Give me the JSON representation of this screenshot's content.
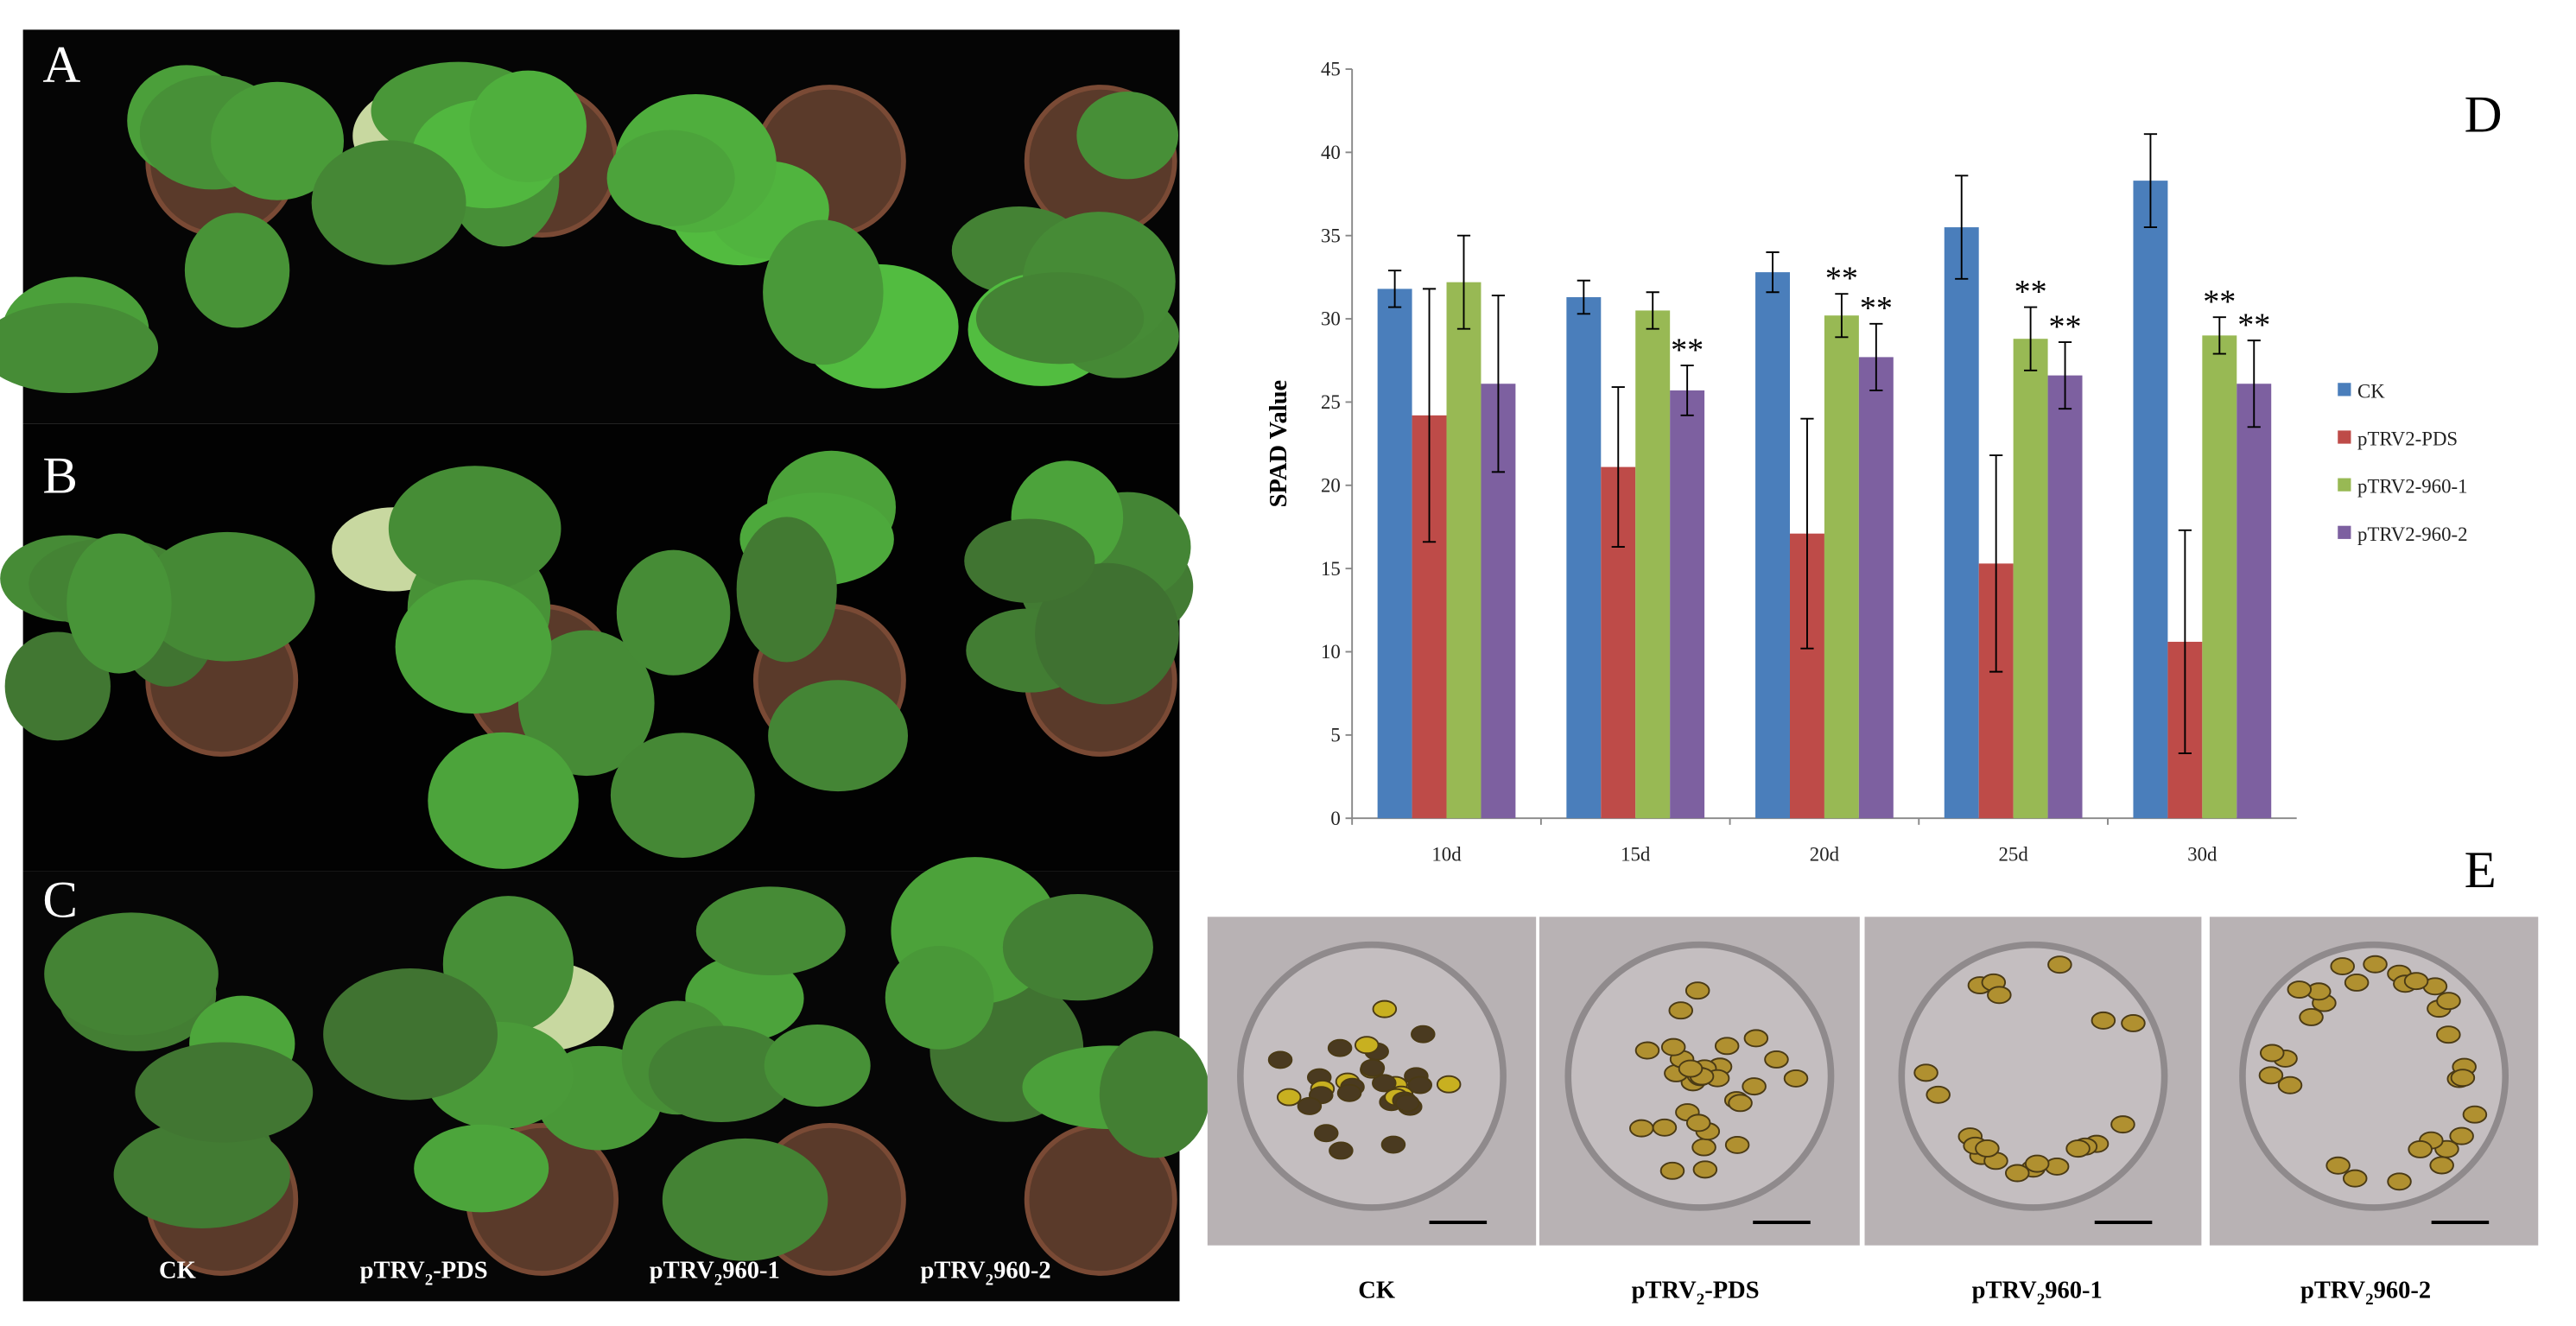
{
  "panel_labels": {
    "a": "A",
    "b": "B",
    "c": "C",
    "d": "D",
    "e": "E"
  },
  "photo_labels": [
    {
      "text": "CK"
    },
    {
      "text": "pTRV",
      "sub": "2",
      "rest": "-PDS"
    },
    {
      "text": "pTRV",
      "sub": "2",
      "rest": "960-1"
    },
    {
      "text": "pTRV",
      "sub": "2",
      "rest": "960-2"
    }
  ],
  "micro_labels": [
    {
      "text": "CK"
    },
    {
      "text": "pTRV",
      "sub": "2",
      "rest": "-PDS"
    },
    {
      "text": "pTRV",
      "sub": "2",
      "rest": "960-1"
    },
    {
      "text": "pTRV",
      "sub": "2",
      "rest": "960-2"
    }
  ],
  "chart_data": {
    "type": "bar",
    "y_label": "SPAD Value",
    "categories": [
      "10d",
      "15d",
      "20d",
      "25d",
      "30d"
    ],
    "ylim": [
      0,
      45
    ],
    "yticks": [
      0,
      5,
      10,
      15,
      20,
      25,
      30,
      35,
      40,
      45
    ],
    "legend": "right",
    "series": [
      {
        "name": "CK",
        "color": "#4a7ebb",
        "values": [
          31.8,
          31.3,
          32.8,
          35.5,
          38.3
        ],
        "errors": [
          1.1,
          1.0,
          1.2,
          3.1,
          2.8
        ],
        "significance": [
          null,
          null,
          null,
          null,
          null
        ]
      },
      {
        "name": "pTRV2-PDS",
        "color": "#be4b48",
        "values": [
          24.2,
          21.1,
          17.1,
          15.3,
          10.6
        ],
        "errors": [
          7.6,
          4.8,
          6.9,
          6.5,
          6.7
        ],
        "significance": [
          null,
          null,
          null,
          null,
          null
        ]
      },
      {
        "name": "pTRV2-960-1",
        "color": "#98b954",
        "values": [
          32.2,
          30.5,
          30.2,
          28.8,
          29.0
        ],
        "errors": [
          2.8,
          1.1,
          1.3,
          1.9,
          1.1
        ],
        "significance": [
          null,
          null,
          "**",
          "**",
          "**"
        ]
      },
      {
        "name": "pTRV2-960-2",
        "color": "#7d60a0",
        "values": [
          26.1,
          25.7,
          27.7,
          26.6,
          26.1
        ],
        "errors": [
          5.3,
          1.5,
          2.0,
          2.0,
          2.6
        ],
        "significance": [
          null,
          "**",
          "**",
          "**",
          "**"
        ]
      }
    ]
  }
}
